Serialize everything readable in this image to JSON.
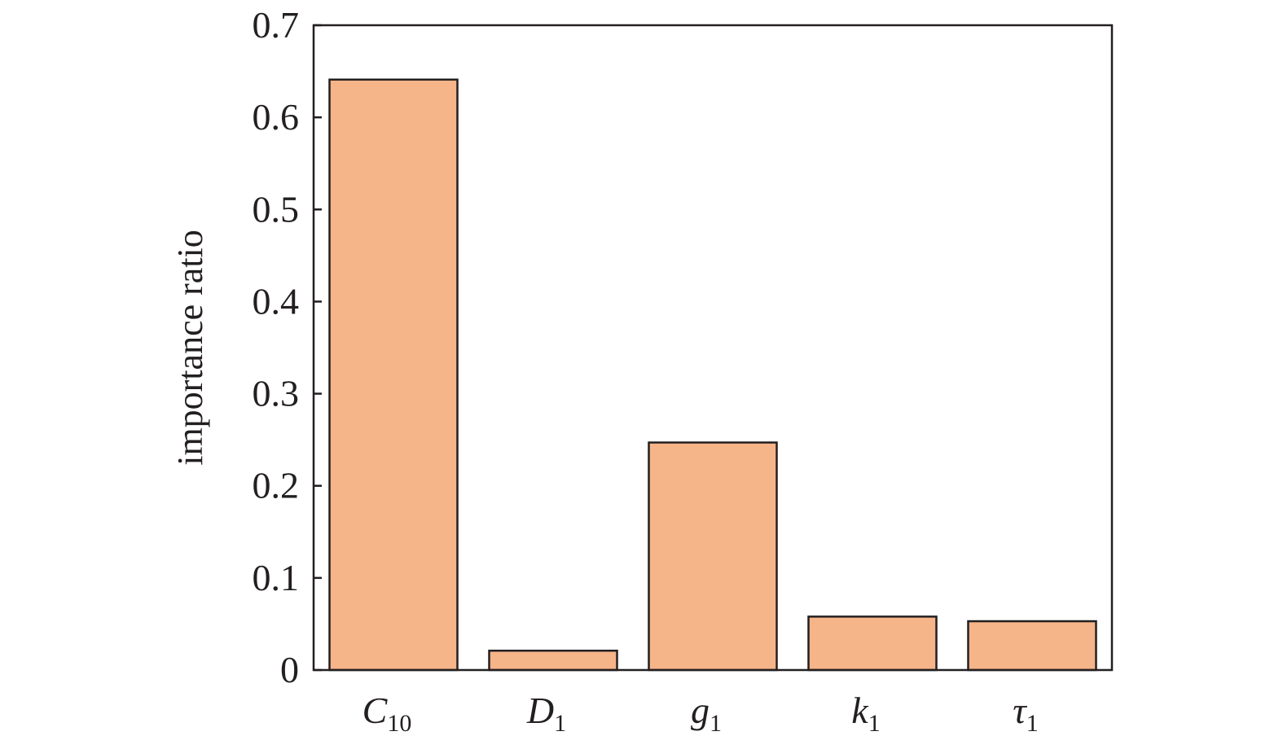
{
  "chart_data": {
    "type": "bar",
    "title": "",
    "xlabel": "",
    "ylabel": "importance ratio",
    "categories": [
      {
        "base": "C",
        "sub": "10"
      },
      {
        "base": "D",
        "sub": "1"
      },
      {
        "base": "g",
        "sub": "1"
      },
      {
        "base": "k",
        "sub": "1"
      },
      {
        "base": "τ",
        "sub": "1"
      }
    ],
    "values": [
      0.641,
      0.021,
      0.247,
      0.058,
      0.053
    ],
    "ylim": [
      0,
      0.7
    ],
    "yticks": [
      "0",
      "0.1",
      "0.2",
      "0.3",
      "0.4",
      "0.5",
      "0.6",
      "0.7"
    ],
    "grid": false,
    "bar_color": "#f6b489",
    "edge_color": "#231f20"
  }
}
